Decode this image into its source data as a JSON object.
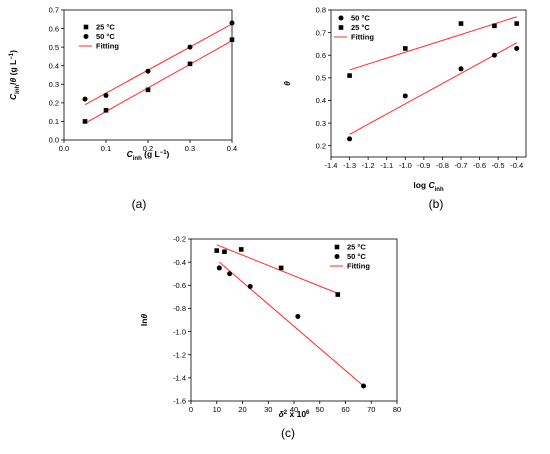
{
  "chart_data": [
    {
      "type": "scatter",
      "panel_label": "(a)",
      "xlabel": "C_inh (g L⁻¹)",
      "xlabel_parts": {
        "main": "C",
        "sub": "inh",
        "rest": " (g L",
        "sup": "−1",
        "end": ")"
      },
      "ylabel_parts": {
        "main": "C",
        "sub": "inh",
        "rest": "/θ (g L",
        "sup": "−1",
        "end": ")"
      },
      "xlim": [
        0.0,
        0.4
      ],
      "ylim": [
        0.0,
        0.7
      ],
      "x_ticks": [
        0.0,
        0.1,
        0.2,
        0.3,
        0.4
      ],
      "x_tick_labels": [
        "0.0",
        "0.1",
        "0.2",
        "0.3",
        "0.4"
      ],
      "y_ticks": [
        0.0,
        0.1,
        0.2,
        0.3,
        0.4,
        0.5,
        0.6,
        0.7
      ],
      "y_tick_labels": [
        "0.0",
        "0.1",
        "0.2",
        "0.3",
        "0.4",
        "0.5",
        "0.6",
        "0.7"
      ],
      "legend_placement": "top-left",
      "legend": [
        "25 °C",
        "50 °C",
        "Fitting"
      ],
      "series": [
        {
          "name": "25 °C",
          "marker": "square",
          "x": [
            0.05,
            0.1,
            0.2,
            0.3,
            0.4
          ],
          "y": [
            0.1,
            0.16,
            0.27,
            0.41,
            0.54
          ]
        },
        {
          "name": "50 °C",
          "marker": "circle",
          "x": [
            0.05,
            0.1,
            0.2,
            0.3,
            0.4
          ],
          "y": [
            0.22,
            0.24,
            0.37,
            0.5,
            0.63
          ]
        }
      ],
      "fits": [
        {
          "x": [
            0.05,
            0.4
          ],
          "y": [
            0.09,
            0.535
          ]
        },
        {
          "x": [
            0.05,
            0.4
          ],
          "y": [
            0.19,
            0.625
          ]
        }
      ]
    },
    {
      "type": "scatter",
      "panel_label": "(b)",
      "xlabel_parts": {
        "main": "log C",
        "sub": "inh",
        "rest": "",
        "sup": "",
        "end": ""
      },
      "ylabel_parts": {
        "main": "θ",
        "sub": "",
        "rest": "",
        "sup": "",
        "end": ""
      },
      "xlim": [
        -1.4,
        -0.35
      ],
      "ylim": [
        0.15,
        0.8
      ],
      "x_ticks": [
        -1.4,
        -1.3,
        -1.2,
        -1.1,
        -1.0,
        -0.9,
        -0.8,
        -0.7,
        -0.6,
        -0.5,
        -0.4
      ],
      "x_tick_labels": [
        "-1.4",
        "-1.3",
        "-1.2",
        "-1.1",
        "-1.0",
        "-0.9",
        "-0.8",
        "-0.7",
        "-0.6",
        "-0.5",
        "-0.4"
      ],
      "y_ticks": [
        0.2,
        0.3,
        0.4,
        0.5,
        0.6,
        0.7,
        0.8
      ],
      "y_tick_labels": [
        "0.2",
        "0.3",
        "0.4",
        "0.5",
        "0.6",
        "0.7",
        "0.8"
      ],
      "legend_placement": "top-left",
      "legend": [
        "50 °C",
        "25 °C",
        "Fitting"
      ],
      "series": [
        {
          "name": "50 °C",
          "marker": "circle",
          "x": [
            -1.3,
            -1.0,
            -0.7,
            -0.52,
            -0.4
          ],
          "y": [
            0.23,
            0.42,
            0.54,
            0.6,
            0.63
          ]
        },
        {
          "name": "25 °C",
          "marker": "square",
          "x": [
            -1.3,
            -1.0,
            -0.7,
            -0.52,
            -0.4
          ],
          "y": [
            0.51,
            0.63,
            0.74,
            0.73,
            0.74
          ]
        }
      ],
      "fits": [
        {
          "x": [
            -1.3,
            -0.4
          ],
          "y": [
            0.25,
            0.655
          ]
        },
        {
          "x": [
            -1.3,
            -0.4
          ],
          "y": [
            0.535,
            0.77
          ]
        }
      ]
    },
    {
      "type": "scatter",
      "panel_label": "(c)",
      "xlabel_parts": {
        "main": "δ",
        "sub": "",
        "rest": " x 10",
        "sup": "6",
        "end": "",
        "pre_sup": "2"
      },
      "ylabel_parts": {
        "main": "lnθ",
        "sub": "",
        "rest": "",
        "sup": "",
        "end": ""
      },
      "xlim": [
        0,
        80
      ],
      "ylim": [
        -1.6,
        -0.2
      ],
      "x_ticks": [
        0,
        10,
        20,
        30,
        40,
        50,
        60,
        70,
        80
      ],
      "x_tick_labels": [
        "0",
        "10",
        "20",
        "30",
        "40",
        "50",
        "60",
        "70",
        "80"
      ],
      "y_ticks": [
        -1.6,
        -1.4,
        -1.2,
        -1.0,
        -0.8,
        -0.6,
        -0.4,
        -0.2
      ],
      "y_tick_labels": [
        "-1.6",
        "-1.4",
        "-1.2",
        "-1.0",
        "-0.8",
        "-0.6",
        "-0.4",
        "-0.2"
      ],
      "legend_placement": "top-right",
      "legend": [
        "25 °C",
        "50 °C",
        "Fitting"
      ],
      "series": [
        {
          "name": "25 °C",
          "marker": "square",
          "x": [
            10,
            13,
            19.5,
            35,
            57
          ],
          "y": [
            -0.3,
            -0.31,
            -0.29,
            -0.45,
            -0.68
          ]
        },
        {
          "name": "50 °C",
          "marker": "circle",
          "x": [
            11,
            15,
            23,
            41.5,
            67
          ],
          "y": [
            -0.45,
            -0.5,
            -0.61,
            -0.87,
            -1.47
          ]
        }
      ],
      "fits": [
        {
          "x": [
            10,
            57
          ],
          "y": [
            -0.25,
            -0.67
          ]
        },
        {
          "x": [
            11,
            67
          ],
          "y": [
            -0.4,
            -1.47
          ]
        }
      ]
    }
  ]
}
